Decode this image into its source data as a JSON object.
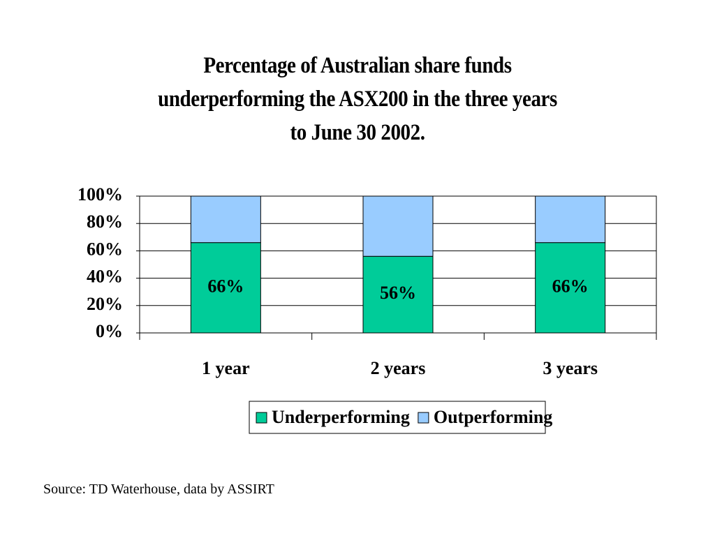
{
  "chart_data": {
    "type": "stacked-bar",
    "title": "Percentage of Australian share funds\nunderperforming the ASX200 in the three years\nto June 30 2002.",
    "categories": [
      "1 year",
      "2 years",
      "3 years"
    ],
    "series": [
      {
        "name": "Underperforming",
        "color": "#00cc99",
        "values": [
          66,
          56,
          66
        ],
        "value_labels": [
          "66%",
          "56%",
          "66%"
        ]
      },
      {
        "name": "Outperforming",
        "color": "#99ccff",
        "values": [
          34,
          44,
          34
        ]
      }
    ],
    "ylim": [
      0,
      100
    ],
    "yticks": [
      {
        "value": 0,
        "label": "0%"
      },
      {
        "value": 20,
        "label": "20%"
      },
      {
        "value": 40,
        "label": "40%"
      },
      {
        "value": 60,
        "label": "60%"
      },
      {
        "value": 80,
        "label": "80%"
      },
      {
        "value": 100,
        "label": "100%"
      }
    ],
    "grid": true,
    "legend": "bottom",
    "source": "Source: TD Waterhouse, data by ASSIRT"
  }
}
